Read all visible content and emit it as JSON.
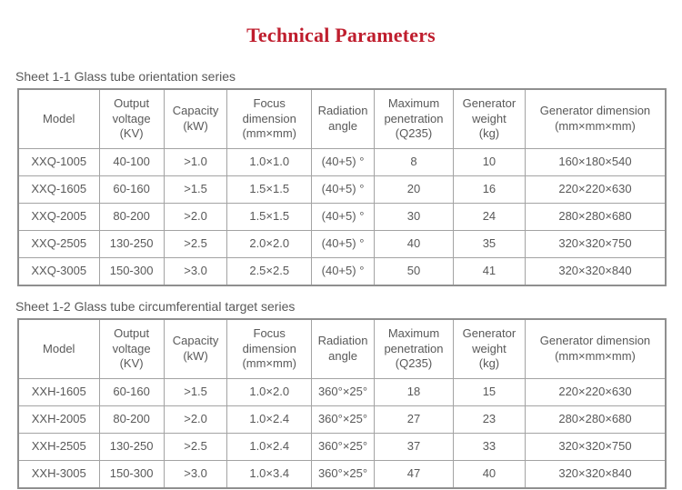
{
  "page": {
    "title": "Technical Parameters",
    "title_color": "#bf1e2e",
    "text_color": "#595959",
    "border_color": "#9a9a9a"
  },
  "tables": [
    {
      "caption": "Sheet 1-1 Glass tube orientation series",
      "headers": [
        "Model",
        "Output\nvoltage\n(KV)",
        "Capacity\n(kW)",
        "Focus\ndimension\n(mm×mm)",
        "Radiation\nangle",
        "Maximum\npenetration\n(Q235)",
        "Generator\nweight\n(kg)",
        "Generator dimension\n(mm×mm×mm)"
      ],
      "rows": [
        [
          "XXQ-1005",
          "40-100",
          ">1.0",
          "1.0×1.0",
          "(40+5) °",
          "8",
          "10",
          "160×180×540"
        ],
        [
          "XXQ-1605",
          "60-160",
          ">1.5",
          "1.5×1.5",
          "(40+5) °",
          "20",
          "16",
          "220×220×630"
        ],
        [
          "XXQ-2005",
          "80-200",
          ">2.0",
          "1.5×1.5",
          "(40+5) °",
          "30",
          "24",
          "280×280×680"
        ],
        [
          "XXQ-2505",
          "130-250",
          ">2.5",
          "2.0×2.0",
          "(40+5) °",
          "40",
          "35",
          "320×320×750"
        ],
        [
          "XXQ-3005",
          "150-300",
          ">3.0",
          "2.5×2.5",
          "(40+5) °",
          "50",
          "41",
          "320×320×840"
        ]
      ]
    },
    {
      "caption": "Sheet 1-2 Glass tube circumferential target series",
      "headers": [
        "Model",
        "Output\nvoltage\n(KV)",
        "Capacity\n(kW)",
        "Focus\ndimension\n(mm×mm)",
        "Radiation\nangle",
        "Maximum\npenetration\n(Q235)",
        "Generator\nweight\n(kg)",
        "Generator dimension\n(mm×mm×mm)"
      ],
      "rows": [
        [
          "XXH-1605",
          "60-160",
          ">1.5",
          "1.0×2.0",
          "360°×25°",
          "18",
          "15",
          "220×220×630"
        ],
        [
          "XXH-2005",
          "80-200",
          ">2.0",
          "1.0×2.4",
          "360°×25°",
          "27",
          "23",
          "280×280×680"
        ],
        [
          "XXH-2505",
          "130-250",
          ">2.5",
          "1.0×2.4",
          "360°×25°",
          "37",
          "33",
          "320×320×750"
        ],
        [
          "XXH-3005",
          "150-300",
          ">3.0",
          "1.0×3.4",
          "360°×25°",
          "47",
          "40",
          "320×320×840"
        ]
      ]
    }
  ],
  "column_names": [
    "model",
    "output-voltage",
    "capacity",
    "focus-dimension",
    "radiation-angle",
    "maximum-penetration",
    "generator-weight",
    "generator-dimension"
  ]
}
